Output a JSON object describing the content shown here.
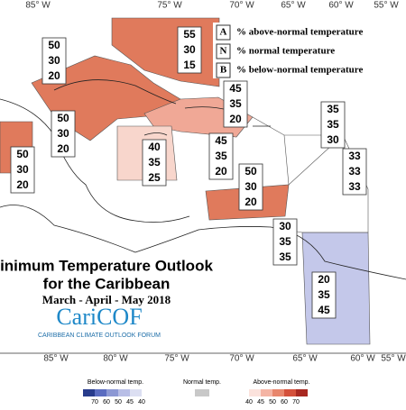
{
  "map": {
    "lon_top": [
      "85° W",
      "75° W",
      "70° W",
      "65° W",
      "60° W",
      "55° W"
    ],
    "lon_bottom": [
      "85° W",
      "80° W",
      "75° W",
      "70° W",
      "65° W",
      "60° W",
      "55° W"
    ],
    "legend": [
      {
        "key": "A",
        "text": "% above-normal temperature"
      },
      {
        "key": "N",
        "text": "% normal temperature"
      },
      {
        "key": "B",
        "text": "% below-normal temperature"
      }
    ],
    "title": "inimum Temperature Outlook",
    "subtitle": "for the Caribbean",
    "season": "March - April - May 2018",
    "logo": "CariCOF",
    "logo_caption": "CARIBBEAN CLIMATE OUTLOOK FORUM",
    "regions": [
      {
        "values": [
          "55",
          "30",
          "15"
        ],
        "color": "#e07a5c"
      },
      {
        "values": [
          "50",
          "30",
          "20"
        ],
        "color": "#e07a5c"
      },
      {
        "values": [
          "50",
          "30",
          "20"
        ],
        "color": "#e07a5c"
      },
      {
        "values": [
          "45",
          "35",
          "20"
        ],
        "color": "#f0a896"
      },
      {
        "values": [
          "40",
          "35",
          "25"
        ],
        "color": "#f8d6cc"
      },
      {
        "values": [
          "45",
          "35",
          "20"
        ],
        "color": "#f0a896"
      },
      {
        "values": [
          "35",
          "35",
          "30"
        ],
        "color": "#ffffff"
      },
      {
        "values": [
          "50",
          "30",
          "20"
        ],
        "color": "#e07a5c"
      },
      {
        "values": [
          "33",
          "33",
          "33"
        ],
        "color": "#ffffff"
      },
      {
        "values": [
          "50",
          "30",
          "20"
        ],
        "color": "#e07a5c"
      },
      {
        "values": [
          "30",
          "35",
          "35"
        ],
        "color": "#ffffff"
      },
      {
        "values": [
          "20",
          "35",
          "45"
        ],
        "color": "#c4c8ea"
      }
    ],
    "colorbar": {
      "below_title": "Below-normal temp.",
      "normal_title": "Normal temp.",
      "above_title": "Above-normal temp.",
      "below_ticks": [
        "70",
        "60",
        "50",
        "45",
        "40"
      ],
      "above_ticks": [
        "40",
        "45",
        "50",
        "60",
        "70"
      ],
      "below_colors": [
        "#283c8c",
        "#5a6cc0",
        "#8c98d4",
        "#b8bee6",
        "#dcdff2"
      ],
      "normal_color": "#c8c8c8",
      "above_colors": [
        "#fbe2dc",
        "#f4b4a4",
        "#e8866c",
        "#d4503a",
        "#a82820"
      ]
    }
  }
}
